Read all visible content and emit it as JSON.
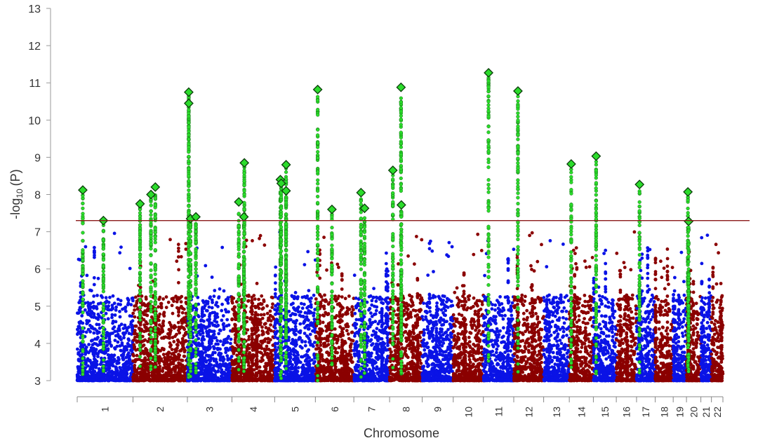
{
  "chart_data": {
    "type": "scatter",
    "subtype": "manhattan",
    "title": "",
    "xlabel": "Chromosome",
    "ylabel_main": "-log",
    "ylabel_sub": "10",
    "ylabel_var": "(P)",
    "ylim": [
      3,
      13
    ],
    "yticks": [
      3,
      4,
      5,
      6,
      7,
      8,
      9,
      10,
      11,
      12,
      13
    ],
    "significance_threshold": 7.3,
    "colors": {
      "odd": "#0a13e6",
      "even": "#8b0000",
      "highlight": "#2bdc2b",
      "threshold": "#8b1a1a"
    },
    "chromosomes": [
      {
        "label": "1",
        "start": 0,
        "end": 248
      },
      {
        "label": "2",
        "start": 248,
        "end": 490
      },
      {
        "label": "3",
        "start": 490,
        "end": 688
      },
      {
        "label": "4",
        "start": 688,
        "end": 878
      },
      {
        "label": "5",
        "start": 878,
        "end": 1059
      },
      {
        "label": "6",
        "start": 1059,
        "end": 1230
      },
      {
        "label": "7",
        "start": 1230,
        "end": 1389
      },
      {
        "label": "8",
        "start": 1389,
        "end": 1534
      },
      {
        "label": "9",
        "start": 1534,
        "end": 1672
      },
      {
        "label": "10",
        "start": 1672,
        "end": 1806
      },
      {
        "label": "11",
        "start": 1806,
        "end": 1941
      },
      {
        "label": "12",
        "start": 1941,
        "end": 2074
      },
      {
        "label": "13",
        "start": 2074,
        "end": 2188
      },
      {
        "label": "14",
        "start": 2188,
        "end": 2295
      },
      {
        "label": "15",
        "start": 2295,
        "end": 2397
      },
      {
        "label": "16",
        "start": 2397,
        "end": 2487
      },
      {
        "label": "17",
        "start": 2487,
        "end": 2570
      },
      {
        "label": "18",
        "start": 2570,
        "end": 2650
      },
      {
        "label": "19",
        "start": 2650,
        "end": 2709
      },
      {
        "label": "20",
        "start": 2709,
        "end": 2773
      },
      {
        "label": "21",
        "start": 2773,
        "end": 2820
      },
      {
        "label": "22",
        "start": 2820,
        "end": 2871
      }
    ],
    "lead_snps": [
      {
        "chr": "1",
        "pos": 1.0,
        "y": 8.12
      },
      {
        "chr": "1",
        "pos": 4.7,
        "y": 7.3
      },
      {
        "chr": "2",
        "pos": 1.3,
        "y": 7.75
      },
      {
        "chr": "2",
        "pos": 3.3,
        "y": 8.0
      },
      {
        "chr": "2",
        "pos": 4.1,
        "y": 8.2
      },
      {
        "chr": "3",
        "pos": 0.3,
        "y": 10.75
      },
      {
        "chr": "3",
        "pos": 0.3,
        "y": 10.45
      },
      {
        "chr": "3",
        "pos": 0.7,
        "y": 7.35
      },
      {
        "chr": "3",
        "pos": 1.9,
        "y": 7.4
      },
      {
        "chr": "4",
        "pos": 1.6,
        "y": 7.8
      },
      {
        "chr": "4",
        "pos": 2.8,
        "y": 7.4
      },
      {
        "chr": "4",
        "pos": 2.9,
        "y": 8.85
      },
      {
        "chr": "5",
        "pos": 1.4,
        "y": 8.4
      },
      {
        "chr": "5",
        "pos": 1.6,
        "y": 8.3
      },
      {
        "chr": "5",
        "pos": 2.8,
        "y": 8.8
      },
      {
        "chr": "5",
        "pos": 2.8,
        "y": 8.1
      },
      {
        "chr": "6",
        "pos": 0.6,
        "y": 10.82
      },
      {
        "chr": "6",
        "pos": 4.3,
        "y": 7.6
      },
      {
        "chr": "7",
        "pos": 2.0,
        "y": 8.05
      },
      {
        "chr": "7",
        "pos": 3.0,
        "y": 7.63
      },
      {
        "chr": "8",
        "pos": 1.0,
        "y": 8.65
      },
      {
        "chr": "8",
        "pos": 3.5,
        "y": 10.88
      },
      {
        "chr": "8",
        "pos": 3.6,
        "y": 7.72
      },
      {
        "chr": "11",
        "pos": 1.7,
        "y": 11.27
      },
      {
        "chr": "12",
        "pos": 1.4,
        "y": 10.78
      },
      {
        "chr": "14",
        "pos": 0.8,
        "y": 8.82
      },
      {
        "chr": "15",
        "pos": 1.2,
        "y": 9.03
      },
      {
        "chr": "17",
        "pos": 1.6,
        "y": 8.27
      },
      {
        "chr": "20",
        "pos": 1.0,
        "y": 8.07
      },
      {
        "chr": "20",
        "pos": 1.5,
        "y": 7.28
      }
    ]
  }
}
